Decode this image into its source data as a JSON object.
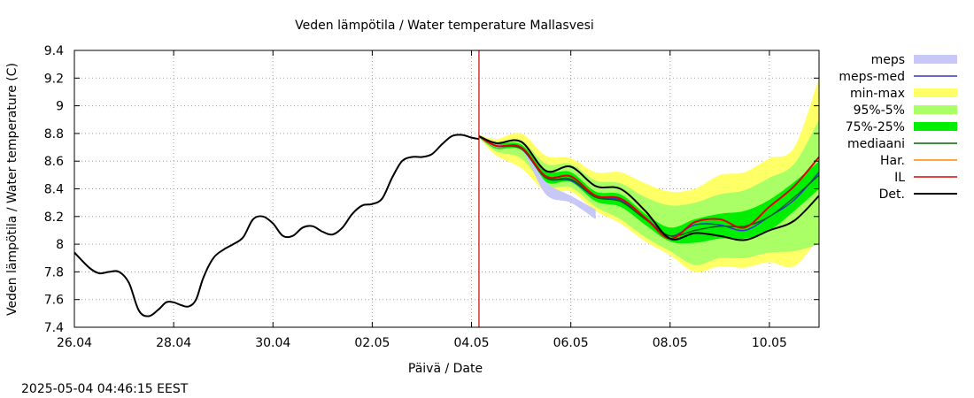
{
  "chart_data": {
    "type": "line",
    "title": "Veden lämpötila / Water temperature Mallasvesi",
    "xlabel": "Päivä / Date",
    "ylabel": "Veden lämpötila / Water temperature (C)",
    "timestamp": "2025-05-04 04:46:15 EEST",
    "xlim": [
      0,
      15
    ],
    "ylim": [
      7.4,
      9.4
    ],
    "x_ticks": [
      {
        "x": 0,
        "label": "26.04"
      },
      {
        "x": 2,
        "label": "28.04"
      },
      {
        "x": 4,
        "label": "30.04"
      },
      {
        "x": 6,
        "label": "02.05"
      },
      {
        "x": 8,
        "label": "04.05"
      },
      {
        "x": 10,
        "label": "06.05"
      },
      {
        "x": 12,
        "label": "08.05"
      },
      {
        "x": 14,
        "label": "10.05"
      }
    ],
    "y_ticks": [
      7.4,
      7.6,
      7.8,
      8,
      8.2,
      8.4,
      8.6,
      8.8,
      9,
      9.2,
      9.4
    ],
    "y_tick_labels": [
      "7.4",
      "7.6",
      "7.8",
      "8",
      "8.2",
      "8.4",
      "8.6",
      "8.8",
      "9",
      "9.2",
      "9.4"
    ],
    "grid": true,
    "legend_position": "right",
    "forecast_start_x": 8.15,
    "observed": {
      "name": "Det.",
      "x": [
        0,
        0.3,
        0.5,
        0.7,
        0.9,
        1.1,
        1.3,
        1.5,
        1.7,
        1.85,
        2,
        2.15,
        2.3,
        2.45,
        2.6,
        2.8,
        3,
        3.2,
        3.4,
        3.6,
        3.8,
        4,
        4.2,
        4.4,
        4.6,
        4.8,
        5,
        5.2,
        5.4,
        5.6,
        5.8,
        6,
        6.2,
        6.4,
        6.6,
        6.8,
        7,
        7.2,
        7.4,
        7.6,
        7.8,
        8,
        8.15
      ],
      "y": [
        7.94,
        7.83,
        7.79,
        7.8,
        7.8,
        7.72,
        7.52,
        7.48,
        7.53,
        7.58,
        7.58,
        7.56,
        7.55,
        7.6,
        7.76,
        7.9,
        7.96,
        8.0,
        8.05,
        8.18,
        8.2,
        8.15,
        8.06,
        8.06,
        8.12,
        8.13,
        8.09,
        8.07,
        8.12,
        8.22,
        8.28,
        8.29,
        8.33,
        8.48,
        8.6,
        8.63,
        8.63,
        8.65,
        8.72,
        8.78,
        8.79,
        8.77,
        8.76
      ]
    },
    "forecast_x": [
      8.15,
      8.5,
      9.0,
      9.5,
      10.0,
      10.5,
      11.0,
      11.5,
      12.0,
      12.5,
      13.0,
      13.5,
      14.0,
      14.5,
      15.0
    ],
    "series": [
      {
        "name": "min-max",
        "color": "#ffff66",
        "lower": [
          8.77,
          8.64,
          8.55,
          8.38,
          8.38,
          8.24,
          8.15,
          8.02,
          7.92,
          7.8,
          7.84,
          7.83,
          7.87,
          7.84,
          8.05
        ],
        "upper": [
          8.79,
          8.76,
          8.8,
          8.64,
          8.62,
          8.52,
          8.52,
          8.44,
          8.38,
          8.4,
          8.5,
          8.52,
          8.62,
          8.7,
          9.2
        ]
      },
      {
        "name": "95%-5%",
        "color": "#aaff66",
        "lower": [
          8.77,
          8.67,
          8.62,
          8.42,
          8.41,
          8.27,
          8.18,
          8.05,
          7.95,
          7.85,
          7.9,
          7.9,
          7.94,
          7.95,
          8.0
        ],
        "upper": [
          8.79,
          8.74,
          8.75,
          8.58,
          8.58,
          8.46,
          8.44,
          8.34,
          8.28,
          8.3,
          8.36,
          8.39,
          8.48,
          8.58,
          8.9
        ]
      },
      {
        "name": "75%-25%",
        "color": "#00ee00",
        "lower": [
          8.77,
          8.69,
          8.68,
          8.45,
          8.45,
          8.31,
          8.27,
          8.14,
          8.02,
          8.01,
          8.04,
          8.04,
          8.1,
          8.24,
          8.4
        ],
        "upper": [
          8.79,
          8.73,
          8.72,
          8.53,
          8.52,
          8.38,
          8.36,
          8.22,
          8.12,
          8.18,
          8.22,
          8.24,
          8.32,
          8.45,
          8.6
        ]
      },
      {
        "name": "meps",
        "color": "#c8c8f8",
        "lower": [
          8.77,
          8.7,
          8.68,
          8.36,
          8.3,
          8.18
        ],
        "upper": [
          8.79,
          8.72,
          8.7,
          8.45,
          8.35,
          8.25
        ]
      },
      {
        "name": "meps-med",
        "color": "#3333cc",
        "values": [
          8.78,
          8.71,
          8.69,
          8.48,
          8.46,
          8.34,
          8.32,
          8.19,
          8.06,
          8.14,
          8.14,
          8.1,
          8.2,
          8.32,
          8.52
        ]
      },
      {
        "name": "mediaani",
        "color": "#006600",
        "values": [
          8.78,
          8.71,
          8.69,
          8.48,
          8.47,
          8.34,
          8.31,
          8.18,
          8.06,
          8.1,
          8.13,
          8.13,
          8.2,
          8.34,
          8.5
        ]
      },
      {
        "name": "Har.",
        "color": "#ff8800",
        "values": [
          8.78,
          8.71,
          8.7,
          8.49,
          8.49,
          8.35,
          8.33,
          8.19,
          8.04,
          8.16,
          8.18,
          8.12,
          8.27,
          8.42,
          8.63
        ]
      },
      {
        "name": "IL",
        "color": "#dd0000",
        "values": [
          8.78,
          8.71,
          8.7,
          8.49,
          8.49,
          8.35,
          8.33,
          8.19,
          8.04,
          8.16,
          8.18,
          8.12,
          8.27,
          8.42,
          8.63
        ]
      },
      {
        "name": "Det.",
        "color": "#000000",
        "values": [
          8.78,
          8.73,
          8.74,
          8.53,
          8.56,
          8.42,
          8.4,
          8.24,
          8.04,
          8.08,
          8.06,
          8.03,
          8.1,
          8.17,
          8.35
        ]
      }
    ],
    "legend": [
      {
        "name": "meps",
        "kind": "box",
        "color": "#c8c8f8"
      },
      {
        "name": "meps-med",
        "kind": "line",
        "color": "#3333cc"
      },
      {
        "name": "min-max",
        "kind": "box",
        "color": "#ffff66"
      },
      {
        "name": "95%-5%",
        "kind": "box",
        "color": "#aaff66"
      },
      {
        "name": "75%-25%",
        "kind": "box",
        "color": "#00ee00"
      },
      {
        "name": "mediaani",
        "kind": "line",
        "color": "#006600"
      },
      {
        "name": "Har.",
        "kind": "line",
        "color": "#ff8800"
      },
      {
        "name": "IL",
        "kind": "line",
        "color": "#dd0000"
      },
      {
        "name": "Det.",
        "kind": "line",
        "color": "#000000"
      }
    ]
  }
}
